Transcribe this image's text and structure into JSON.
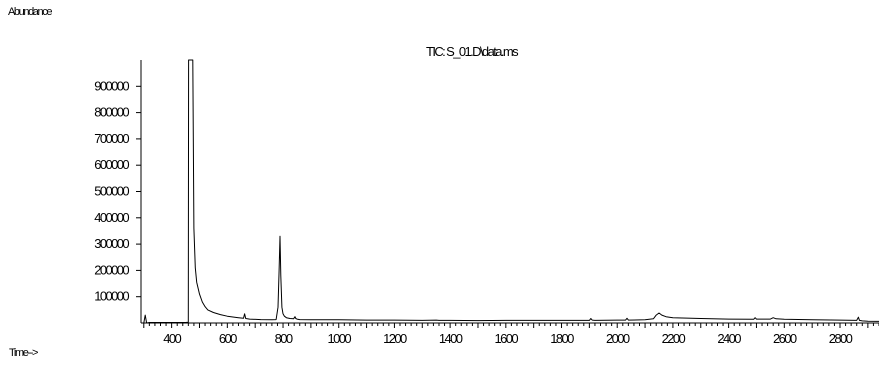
{
  "chart_data": {
    "type": "line",
    "title": "TIC: S_01.D\\data.ms",
    "ylabel": "Abundance",
    "xlabel": "Time-->",
    "xlim": [
      290,
      2940
    ],
    "ylim": [
      0,
      1000000
    ],
    "x_ticks": [
      400,
      600,
      800,
      1000,
      1200,
      1400,
      1600,
      1800,
      2000,
      2200,
      2400,
      2600,
      2800
    ],
    "x_tick_labels": [
      "400",
      "600",
      "800",
      "1000",
      "1200",
      "1400",
      "1600",
      "1800",
      "2000",
      "2200",
      "2400",
      "2600",
      "2800"
    ],
    "y_ticks": [
      100000,
      200000,
      300000,
      400000,
      500000,
      600000,
      700000,
      800000,
      900000
    ],
    "y_tick_labels": [
      "100000",
      "200000",
      "300000",
      "400000",
      "500000",
      "600000",
      "700000",
      "800000",
      "900000"
    ],
    "grid": false,
    "series": [
      {
        "x": [
          290,
          300,
          305,
          310,
          320,
          450,
          460,
          461,
          468,
          475,
          476,
          480,
          485,
          490,
          500,
          510,
          520,
          530,
          550,
          575,
          600,
          640,
          658,
          662,
          666,
          680,
          720,
          760,
          775,
          782,
          786,
          789,
          792,
          796,
          800,
          805,
          812,
          825,
          838,
          843,
          846,
          850,
          860,
          900,
          1000,
          1100,
          1200,
          1300,
          1350,
          1360,
          1400,
          1500,
          1600,
          1700,
          1800,
          1900,
          1905,
          1910,
          1920,
          2000,
          2030,
          2035,
          2040,
          2100,
          2130,
          2140,
          2150,
          2160,
          2175,
          2200,
          2300,
          2400,
          2490,
          2495,
          2500,
          2550,
          2560,
          2570,
          2600,
          2700,
          2800,
          2860,
          2866,
          2870,
          2880,
          2900,
          2940
        ],
        "y": [
          0,
          0,
          30000,
          0,
          2000,
          2000,
          3000,
          1000000,
          1000000,
          1000000,
          1000000,
          360000,
          210000,
          155000,
          110000,
          80000,
          62000,
          50000,
          40000,
          32000,
          26000,
          20000,
          18000,
          35000,
          17000,
          15000,
          13000,
          12000,
          13000,
          60000,
          200000,
          330000,
          180000,
          60000,
          35000,
          26000,
          20000,
          17000,
          16000,
          24000,
          17000,
          15000,
          13000,
          12000,
          12000,
          11000,
          11000,
          10000,
          11000,
          10000,
          10000,
          9000,
          10000,
          10000,
          10000,
          10000,
          17000,
          11000,
          10000,
          11000,
          11000,
          18000,
          11000,
          12000,
          16000,
          30000,
          38000,
          30000,
          24000,
          20000,
          17000,
          15000,
          14000,
          20000,
          15000,
          15000,
          20000,
          16000,
          14000,
          12000,
          11000,
          10000,
          22000,
          10000,
          8000,
          7000,
          6000
        ]
      }
    ]
  }
}
